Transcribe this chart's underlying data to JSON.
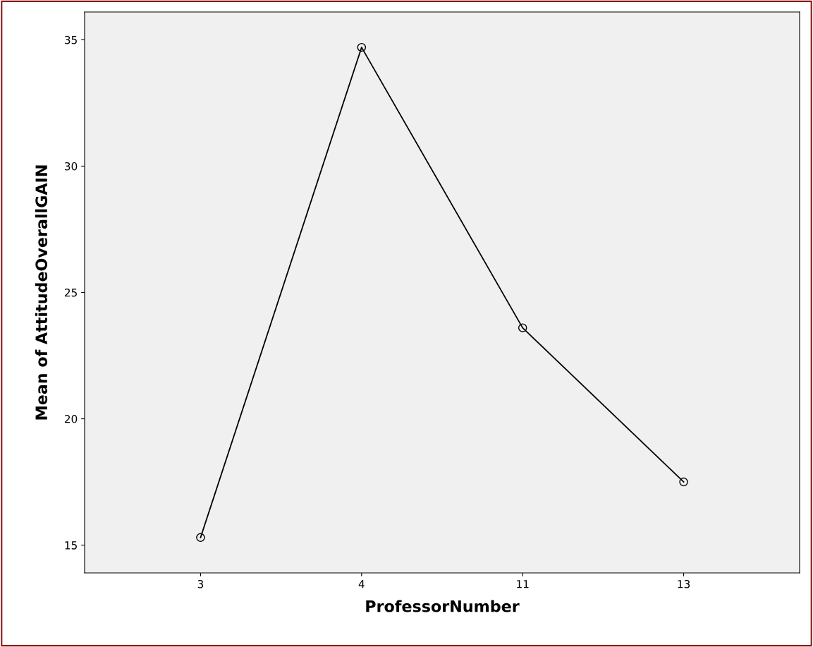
{
  "chart_data": {
    "type": "line",
    "xlabel": "ProfessorNumber",
    "ylabel": "Mean of AttitudeOverallGAIN",
    "categories": [
      "3",
      "4",
      "11",
      "13"
    ],
    "series": [
      {
        "color": "#000000",
        "values": [
          15.3,
          34.7,
          23.6,
          17.5
        ]
      }
    ],
    "ylim": [
      13.9,
      36.1
    ],
    "yticks": [
      15,
      20,
      25,
      30,
      35
    ],
    "grid": false,
    "legend": false,
    "marker": "circle",
    "line_style": "solid"
  }
}
